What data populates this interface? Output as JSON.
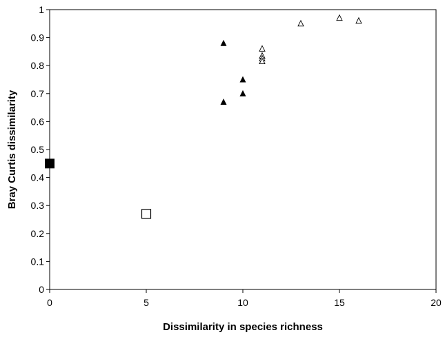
{
  "chart_data": {
    "type": "scatter",
    "title": "",
    "xlabel": "Dissimilarity in species richness",
    "ylabel": "Bray Curtis dissimilarity",
    "xlim": [
      0,
      20
    ],
    "ylim": [
      0,
      1
    ],
    "xticks": [
      "0",
      "5",
      "10",
      "15",
      "20"
    ],
    "yticks": [
      "0",
      "0.1",
      "0.2",
      "0.3",
      "0.4",
      "0.5",
      "0.6",
      "0.7",
      "0.8",
      "0.9",
      "1"
    ],
    "grid": false,
    "legend": "none",
    "series": [
      {
        "marker": "square-filled",
        "color": "#000000",
        "points": [
          [
            0,
            0.45
          ]
        ]
      },
      {
        "marker": "square-open",
        "color": "#000000",
        "points": [
          [
            5,
            0.27
          ]
        ]
      },
      {
        "marker": "triangle-filled",
        "color": "#000000",
        "points": [
          [
            9,
            0.88
          ],
          [
            9,
            0.67
          ],
          [
            10,
            0.75
          ],
          [
            10,
            0.7
          ]
        ]
      },
      {
        "marker": "triangle-open",
        "color": "#000000",
        "points": [
          [
            11,
            0.86
          ],
          [
            11,
            0.835
          ],
          [
            11,
            0.825
          ],
          [
            11,
            0.815
          ],
          [
            13,
            0.95
          ],
          [
            15,
            0.97
          ],
          [
            16,
            0.96
          ]
        ]
      }
    ]
  }
}
